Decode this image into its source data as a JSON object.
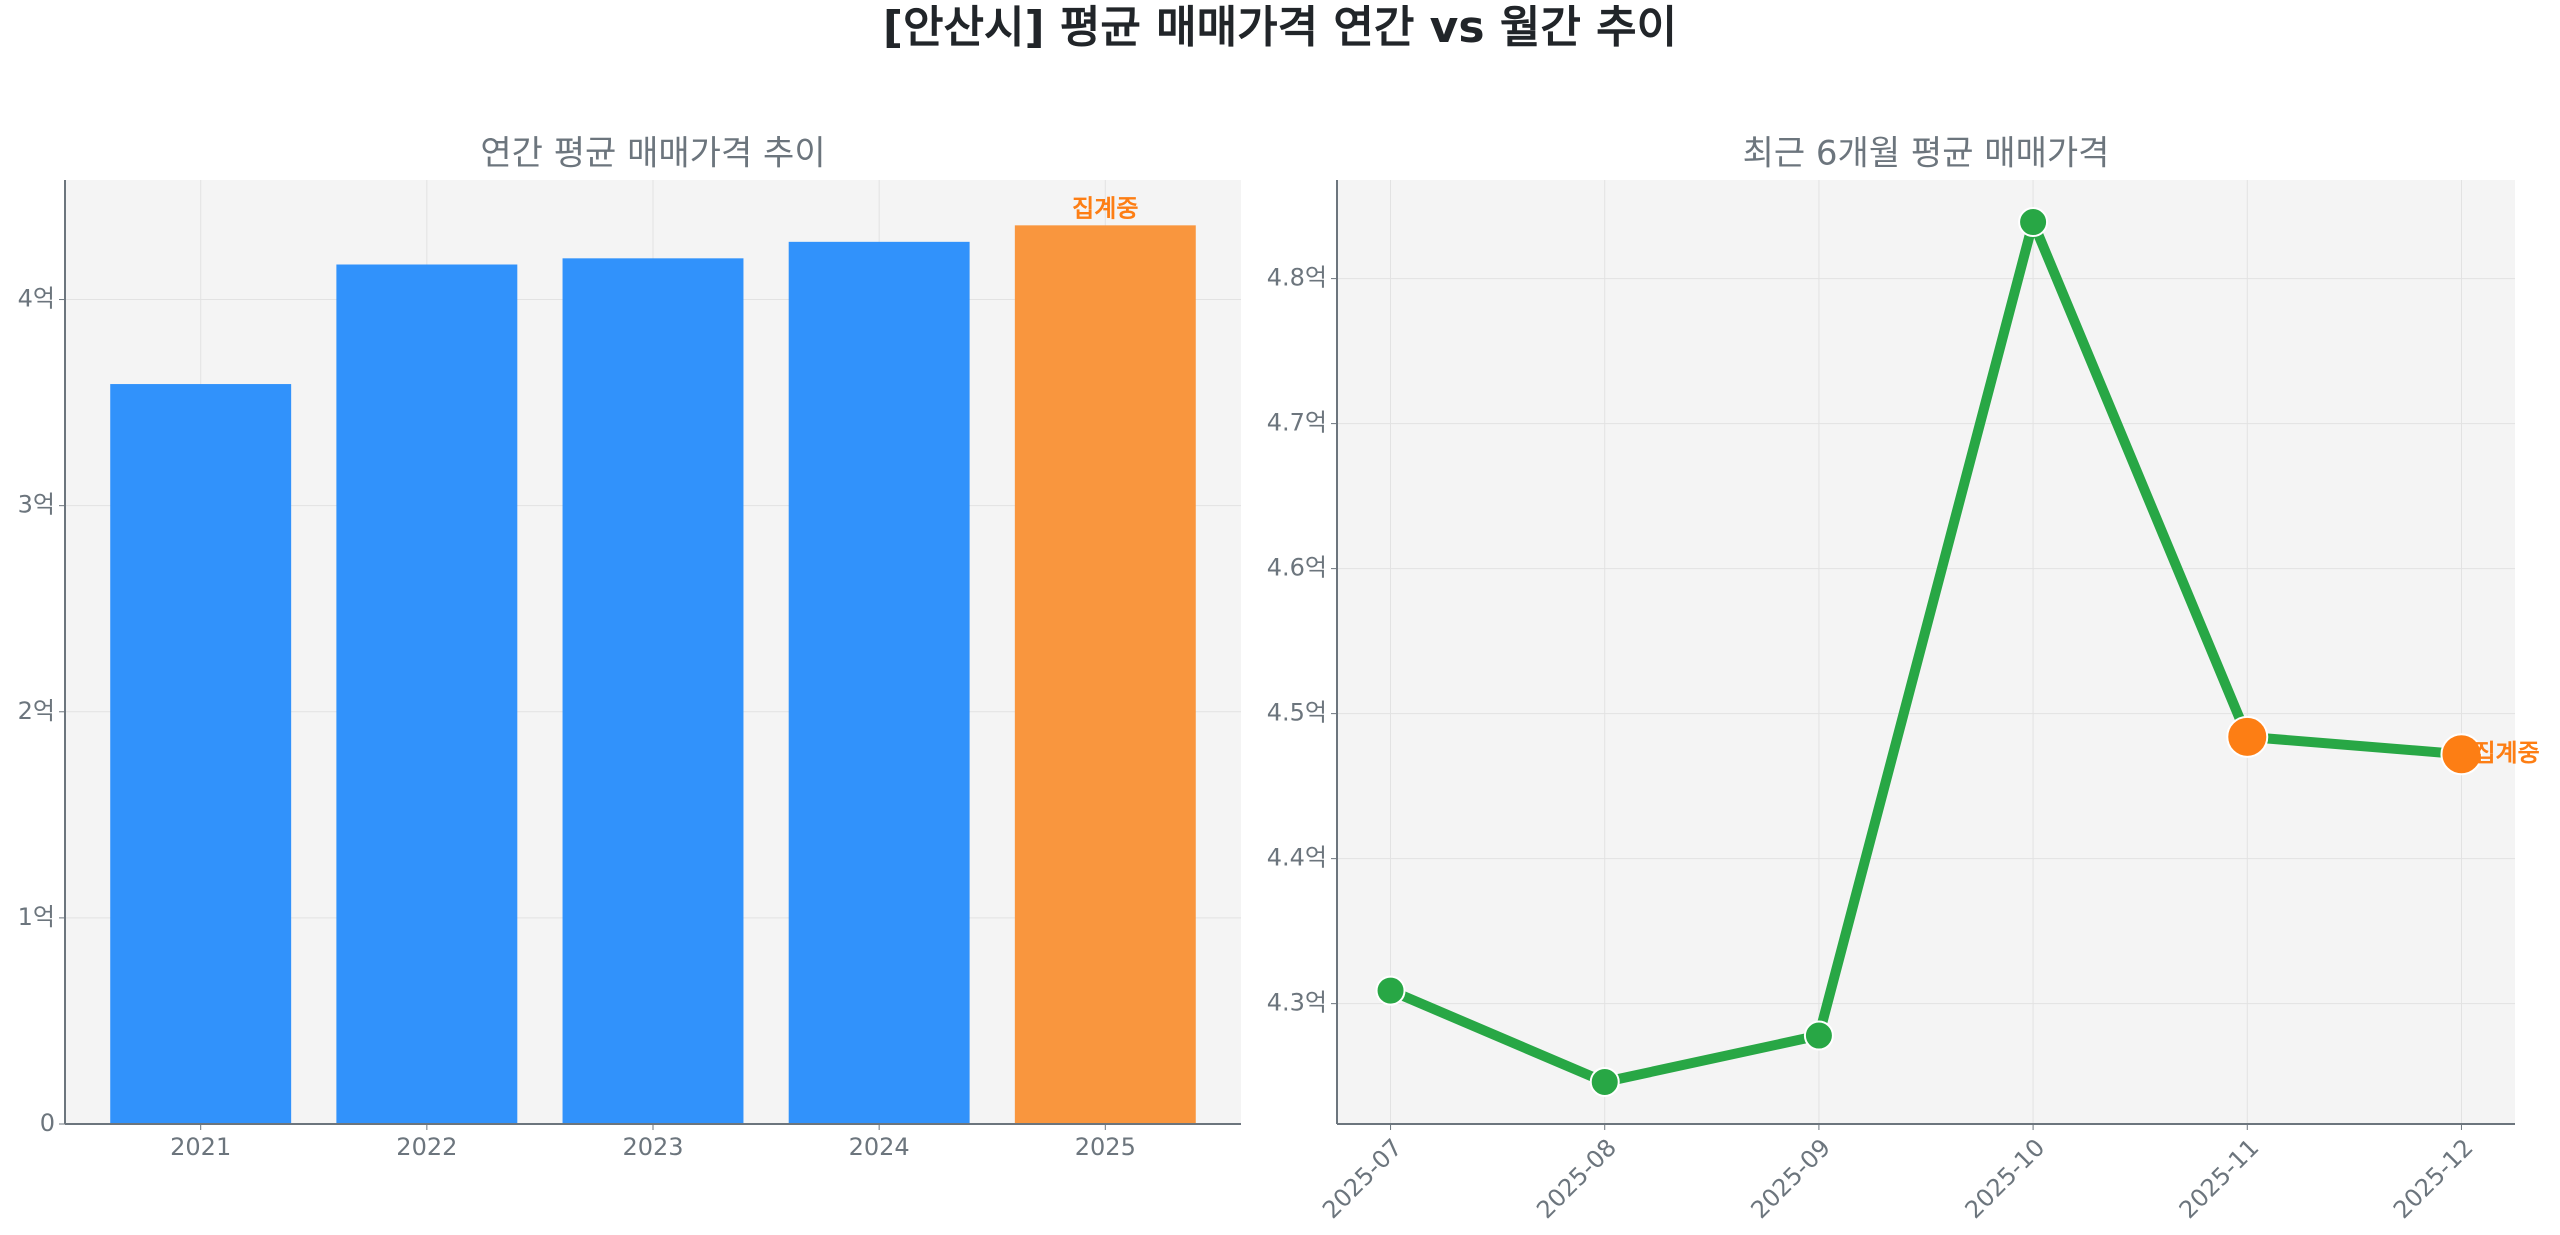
{
  "title": "[안산시] 평균 매매가격 연간 vs 월간 추이",
  "chart_data": [
    {
      "type": "bar",
      "title": "연간 평균 매매가격 추이",
      "categories": [
        "2021",
        "2022",
        "2023",
        "2024",
        "2025"
      ],
      "values": [
        3.59,
        4.17,
        4.2,
        4.28,
        4.36
      ],
      "colors": [
        "#3192fb",
        "#3192fb",
        "#3192fb",
        "#3192fb",
        "#f9963e"
      ],
      "annotation": "집계중",
      "ylim": [
        0,
        4.58
      ],
      "yticks": [
        0,
        {
          "value": 1,
          "label": "1억"
        },
        {
          "value": 2,
          "label": "2억"
        },
        {
          "value": 3,
          "label": "3억"
        },
        {
          "value": 4,
          "label": "4억"
        }
      ],
      "grid": true
    },
    {
      "type": "line",
      "title": "최근 6개월 평균 매매가격",
      "categories": [
        "2025-07",
        "2025-08",
        "2025-09",
        "2025-10",
        "2025-11",
        "2025-12"
      ],
      "values": [
        4.309,
        4.246,
        4.278,
        4.839,
        4.484,
        4.472
      ],
      "color": "#28a745",
      "point_colors": [
        "#28a745",
        "#28a745",
        "#28a745",
        "#28a745",
        "#fd7e14",
        "#fd7e14"
      ],
      "annotation": "집계중",
      "ylim": [
        4.217,
        4.868
      ],
      "yticks": [
        {
          "value": 4.3,
          "label": "4.3억"
        },
        {
          "value": 4.4,
          "label": "4.4억"
        },
        {
          "value": 4.5,
          "label": "4.5억"
        },
        {
          "value": 4.6,
          "label": "4.6억"
        },
        {
          "value": 4.7,
          "label": "4.7억"
        },
        {
          "value": 4.8,
          "label": "4.8억"
        }
      ],
      "grid": true
    }
  ]
}
